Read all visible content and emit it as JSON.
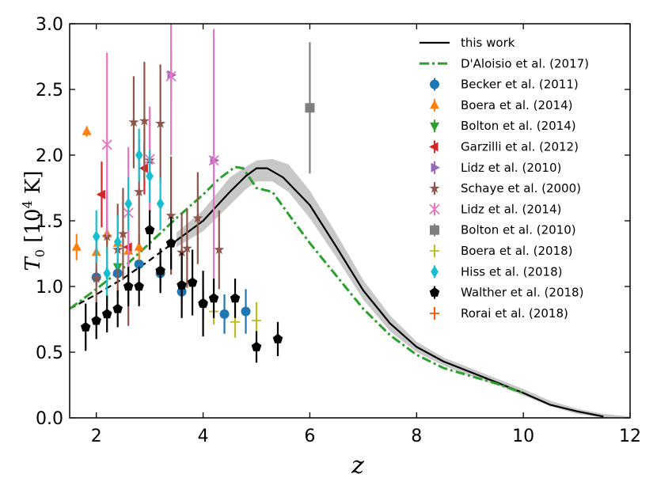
{
  "chart_data": {
    "type": "scatter",
    "title": "",
    "xlabel": "z",
    "ylabel": "T_0 [10^4 K]",
    "xlim": [
      1.5,
      12
    ],
    "ylim": [
      0,
      3
    ],
    "x_ticks": [
      2,
      4,
      6,
      8,
      10,
      12
    ],
    "y_ticks": [
      0.0,
      0.5,
      1.0,
      1.5,
      2.0,
      2.5,
      3.0
    ],
    "x_tick_labels": [
      "2",
      "4",
      "6",
      "8",
      "10",
      "12"
    ],
    "y_tick_labels": [
      "0.0",
      "0.5",
      "1.0",
      "1.5",
      "2.0",
      "2.5",
      "3.0"
    ],
    "grid": false,
    "legend_position": "top-right",
    "band": {
      "name": "this work (uncertainty)",
      "color": "#c8c8c8",
      "upper": [
        [
          3.5,
          1.41
        ],
        [
          4,
          1.58
        ],
        [
          4.5,
          1.83
        ],
        [
          4.8,
          1.91
        ],
        [
          5,
          1.96
        ],
        [
          5.3,
          1.97
        ],
        [
          5.6,
          1.93
        ],
        [
          6,
          1.73
        ],
        [
          6.5,
          1.4
        ],
        [
          7,
          1.05
        ],
        [
          7.5,
          0.78
        ],
        [
          8,
          0.58
        ],
        [
          8.5,
          0.46
        ],
        [
          9,
          0.38
        ],
        [
          9.5,
          0.3
        ],
        [
          10,
          0.22
        ],
        [
          10.5,
          0.13
        ],
        [
          11,
          0.07
        ],
        [
          11.5,
          0.03
        ],
        [
          12,
          0.01
        ]
      ],
      "lower": [
        [
          3.5,
          1.3
        ],
        [
          4,
          1.42
        ],
        [
          4.5,
          1.62
        ],
        [
          4.8,
          1.74
        ],
        [
          5,
          1.8
        ],
        [
          5.3,
          1.8
        ],
        [
          5.6,
          1.72
        ],
        [
          6,
          1.52
        ],
        [
          6.5,
          1.22
        ],
        [
          7,
          0.9
        ],
        [
          7.5,
          0.66
        ],
        [
          8,
          0.5
        ],
        [
          8.5,
          0.4
        ],
        [
          9,
          0.32
        ],
        [
          9.5,
          0.25
        ],
        [
          10,
          0.17
        ],
        [
          10.5,
          0.09
        ],
        [
          11,
          0.03
        ],
        [
          11.5,
          0.0
        ],
        [
          12,
          0.0
        ]
      ]
    },
    "lines": [
      {
        "name": "this work",
        "color": "#000000",
        "style": "solid",
        "x": [
          3.5,
          4.0,
          4.5,
          4.8,
          5.0,
          5.2,
          5.5,
          6.0,
          6.5,
          7.0,
          7.5,
          8.0,
          8.5,
          9.0,
          9.5,
          10.0,
          10.5,
          11.0,
          11.5
        ],
        "y": [
          1.35,
          1.5,
          1.72,
          1.84,
          1.9,
          1.9,
          1.83,
          1.62,
          1.3,
          0.97,
          0.72,
          0.54,
          0.43,
          0.35,
          0.27,
          0.19,
          0.1,
          0.05,
          0.01
        ]
      },
      {
        "name": "this work (extrapolated)",
        "color": "#000000",
        "style": "dashed",
        "x": [
          1.5,
          2.0,
          2.5,
          3.0,
          3.5
        ],
        "y": [
          0.83,
          0.94,
          1.06,
          1.2,
          1.35
        ]
      },
      {
        "name": "D'Aloisio et al. (2017)",
        "color": "#2ca02c",
        "style": "dashdot",
        "x": [
          1.5,
          2.0,
          2.5,
          3.0,
          3.5,
          4.0,
          4.3,
          4.6,
          4.75,
          5.0,
          5.3,
          5.6,
          6.0,
          6.5,
          7.0,
          7.5,
          8.0,
          8.5,
          9.0,
          9.5,
          10.0
        ],
        "y": [
          0.83,
          0.98,
          1.14,
          1.33,
          1.52,
          1.7,
          1.82,
          1.91,
          1.9,
          1.75,
          1.72,
          1.55,
          1.33,
          1.08,
          0.83,
          0.63,
          0.48,
          0.38,
          0.32,
          0.26,
          0.19
        ]
      }
    ],
    "series": [
      {
        "name": "Becker et al. (2011)",
        "color": "#1f77b4",
        "marker": "circle",
        "points": [
          [
            2.0,
            1.07,
            0.06
          ],
          [
            2.4,
            1.1,
            0.06
          ],
          [
            2.8,
            1.17,
            0.07
          ],
          [
            3.2,
            1.1,
            0.08
          ],
          [
            3.6,
            0.96,
            0.1
          ],
          [
            4.0,
            0.87,
            0.12
          ],
          [
            4.4,
            0.79,
            0.15
          ],
          [
            4.8,
            0.81,
            0.17
          ]
        ]
      },
      {
        "name": "Boera et al. (2014)",
        "color": "#ff7f0e",
        "marker": "triangle-up",
        "points": [
          [
            1.63,
            1.3,
            0.1
          ],
          [
            1.82,
            2.18,
            0.04
          ],
          [
            2.0,
            1.26,
            0.06
          ],
          [
            2.2,
            1.4,
            0.08
          ],
          [
            2.4,
            1.33,
            0.08
          ],
          [
            2.6,
            1.27,
            0.1
          ],
          [
            2.8,
            1.3,
            0.1
          ]
        ]
      },
      {
        "name": "Bolton et al. (2014)",
        "color": "#2ca02c",
        "marker": "triangle-down",
        "points": [
          [
            2.4,
            1.15,
            0.06
          ]
        ]
      },
      {
        "name": "Garzilli et al. (2012)",
        "color": "#d62728",
        "marker": "triangle-left",
        "points": [
          [
            2.1,
            1.7,
            0.25
          ],
          [
            2.6,
            1.3,
            0.25
          ],
          [
            2.9,
            1.9,
            0.2
          ]
        ]
      },
      {
        "name": "Lidz et al. (2010)",
        "color": "#9467bd",
        "marker": "triangle-right",
        "points": [
          [
            3.4,
            2.61,
            0.2
          ],
          [
            4.2,
            1.96,
            0.25
          ]
        ]
      },
      {
        "name": "Schaye et al. (2000)",
        "color": "#8c564b",
        "marker": "star",
        "points": [
          [
            2.0,
            1.06,
            0.3
          ],
          [
            2.2,
            1.38,
            0.35
          ],
          [
            2.4,
            1.28,
            0.35
          ],
          [
            2.5,
            1.4,
            0.35
          ],
          [
            2.6,
            1.0,
            0.3
          ],
          [
            2.7,
            2.25,
            0.35
          ],
          [
            2.8,
            1.72,
            0.4
          ],
          [
            2.9,
            2.26,
            0.45
          ],
          [
            3.0,
            1.96,
            0.4
          ],
          [
            3.2,
            2.24,
            0.45
          ],
          [
            3.4,
            1.54,
            0.45
          ],
          [
            3.6,
            1.26,
            0.3
          ],
          [
            3.7,
            1.29,
            0.3
          ],
          [
            3.9,
            1.52,
            0.35
          ],
          [
            4.3,
            1.28,
            0.3
          ]
        ]
      },
      {
        "name": "Lidz et al. (2014)",
        "color": "#e377c2",
        "marker": "x",
        "points": [
          [
            2.2,
            2.08,
            0.7
          ],
          [
            2.6,
            1.56,
            0.5
          ],
          [
            3.0,
            1.97,
            0.4
          ],
          [
            3.4,
            2.6,
            0.6
          ],
          [
            4.2,
            1.96,
            1.0
          ]
        ]
      },
      {
        "name": "Bolton et al. (2010)",
        "color": "#7f7f7f",
        "marker": "square",
        "points": [
          [
            6.0,
            2.36,
            0.5
          ]
        ]
      },
      {
        "name": "Boera et al. (2018)",
        "color": "#bcbd22",
        "marker": "plus",
        "points": [
          [
            4.2,
            0.81,
            0.1
          ],
          [
            4.6,
            0.73,
            0.12
          ],
          [
            5.0,
            0.74,
            0.14
          ]
        ]
      },
      {
        "name": "Hiss et al. (2018)",
        "color": "#17becf",
        "marker": "diamond",
        "points": [
          [
            2.0,
            1.38,
            0.2
          ],
          [
            2.2,
            1.1,
            0.2
          ],
          [
            2.4,
            1.34,
            0.2
          ],
          [
            2.6,
            1.63,
            0.2
          ],
          [
            2.8,
            2.0,
            0.2
          ],
          [
            3.0,
            1.84,
            0.2
          ],
          [
            3.2,
            1.63,
            0.2
          ]
        ]
      },
      {
        "name": "Walther et al. (2018)",
        "color": "#000000",
        "marker": "pentagon",
        "points": [
          [
            1.8,
            0.69,
            0.18
          ],
          [
            2.0,
            0.74,
            0.14
          ],
          [
            2.2,
            0.79,
            0.14
          ],
          [
            2.4,
            0.83,
            0.14
          ],
          [
            2.6,
            1.0,
            0.15
          ],
          [
            2.8,
            1.0,
            0.15
          ],
          [
            3.0,
            1.43,
            0.15
          ],
          [
            3.2,
            1.12,
            0.17
          ],
          [
            3.4,
            1.33,
            0.2
          ],
          [
            3.6,
            1.01,
            0.25
          ],
          [
            3.8,
            1.03,
            0.25
          ],
          [
            4.0,
            0.87,
            0.25
          ],
          [
            4.2,
            0.91,
            0.15
          ],
          [
            4.6,
            0.91,
            0.15
          ],
          [
            5.0,
            0.54,
            0.12
          ],
          [
            5.4,
            0.6,
            0.13
          ]
        ]
      },
      {
        "name": "Rorai et al. (2018)",
        "color": "#ff5500",
        "marker": "plus",
        "points": []
      }
    ],
    "legend_order": [
      "this work",
      "D'Aloisio et al. (2017)",
      "Becker et al. (2011)",
      "Boera et al. (2014)",
      "Bolton et al. (2014)",
      "Garzilli et al. (2012)",
      "Lidz et al. (2010)",
      "Schaye et al. (2000)",
      "Lidz et al. (2014)",
      "Bolton et al. (2010)",
      "Boera et al. (2018)",
      "Hiss et al. (2018)",
      "Walther et al. (2018)",
      "Rorai et al. (2018)"
    ]
  }
}
